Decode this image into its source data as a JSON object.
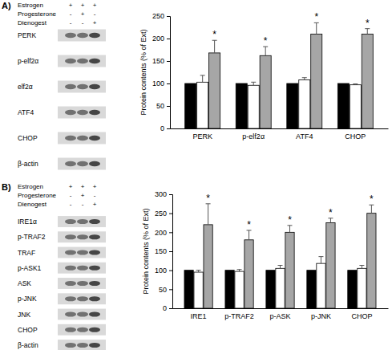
{
  "chart_data": [
    {
      "type": "bar",
      "y_label": "Protein contents (% of Ext)",
      "categories": [
        "PERK",
        "p-elf2α",
        "ATF4",
        "CHOP"
      ],
      "series": [
        {
          "color": "#000000",
          "values": [
            100,
            100,
            100,
            100
          ]
        },
        {
          "color": "#ffffff",
          "values": [
            103,
            96,
            108,
            97
          ],
          "errors": [
            15,
            7,
            5,
            2
          ]
        },
        {
          "color": "#a6a6a6",
          "values": [
            168,
            162,
            210,
            210
          ],
          "errors": [
            28,
            20,
            25,
            12
          ]
        }
      ],
      "ylim": [
        0,
        250
      ],
      "yticks": [
        0,
        50,
        100,
        150,
        200,
        250
      ],
      "annotations": [
        {
          "text": "*",
          "category": "PERK"
        },
        {
          "text": "*",
          "category": "p-elf2α"
        },
        {
          "text": "*",
          "category": "ATF4"
        },
        {
          "text": "*",
          "category": "CHOP"
        }
      ]
    },
    {
      "type": "bar",
      "y_label": "Protein contents (% of Ext)",
      "categories": [
        "IRE1",
        "p-TRAF2",
        "p-ASK",
        "p-JNK",
        "CHOP"
      ],
      "series": [
        {
          "color": "#000000",
          "values": [
            100,
            100,
            100,
            100,
            100
          ]
        },
        {
          "color": "#ffffff",
          "values": [
            95,
            97,
            105,
            118,
            105
          ],
          "errors": [
            5,
            5,
            8,
            18,
            8
          ]
        },
        {
          "color": "#a6a6a6",
          "values": [
            220,
            180,
            200,
            225,
            250
          ],
          "errors": [
            55,
            25,
            18,
            12,
            22
          ]
        }
      ],
      "ylim": [
        0,
        300
      ],
      "yticks": [
        0,
        50,
        100,
        150,
        200,
        250,
        300
      ],
      "annotations": [
        {
          "text": "*",
          "category": "IRE1"
        },
        {
          "text": "*",
          "category": "p-TRAF2"
        },
        {
          "text": "*",
          "category": "p-ASK"
        },
        {
          "text": "*",
          "category": "p-JNK"
        },
        {
          "text": "*",
          "category": "CHOP"
        }
      ]
    }
  ],
  "blots": [
    {
      "panel_label": "A)",
      "treatments": [
        {
          "name": "Estrogen",
          "signs": [
            "+",
            "+",
            "+"
          ]
        },
        {
          "name": "Progesterone",
          "signs": [
            "-",
            "+",
            "-"
          ]
        },
        {
          "name": "Dienogest",
          "signs": [
            "-",
            "-",
            "+"
          ]
        }
      ],
      "proteins": [
        "PERK",
        "p-elf2α",
        "elf2α",
        "ATF4",
        "CHOP",
        "β-actin"
      ]
    },
    {
      "panel_label": "B)",
      "treatments": [
        {
          "name": "Estrogen",
          "signs": [
            "+",
            "+",
            "+"
          ]
        },
        {
          "name": "Progesterone",
          "signs": [
            "-",
            "+",
            "-"
          ]
        },
        {
          "name": "Dienogest",
          "signs": [
            "-",
            "-",
            "+"
          ]
        }
      ],
      "proteins": [
        "IRE1α",
        "p-TRAF2",
        "TRAF",
        "p-ASK1",
        "ASK",
        "p-JNK",
        "JNK",
        "CHOP",
        "β-actin"
      ]
    }
  ]
}
